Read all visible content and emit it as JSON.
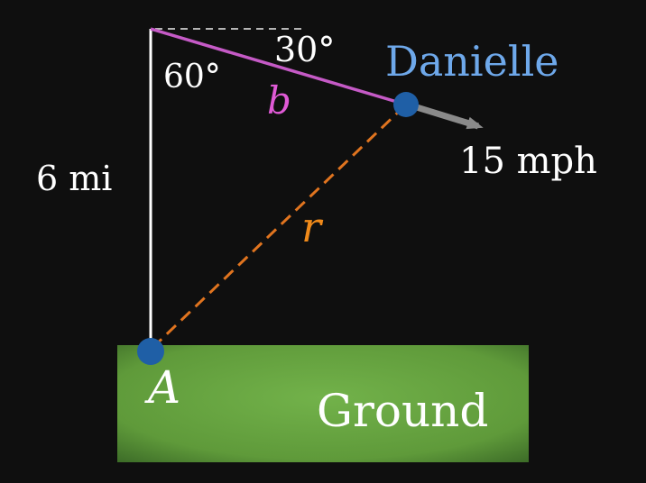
{
  "labels": {
    "angle_top": "60°",
    "angle_right": "30°",
    "person": "Danielle",
    "side_b": "b",
    "speed": "15 mph",
    "height": "6 mi",
    "distance": "r",
    "point_a": "A",
    "ground": "Ground"
  },
  "colors": {
    "background": "#0f0f0f",
    "vertical_line": "#ffffff",
    "dashed_horizontal": "#b5b5b5",
    "line_b": "#c55ac6",
    "line_r": "#e0741f",
    "point": "#1f5fa6",
    "arrow": "#8a8a8a",
    "person_label": "#6ea8ea",
    "b_label": "#e05ad6",
    "r_label": "#f08a1a",
    "ground_center": "#72b24a",
    "ground_edge": "#3b6a27"
  }
}
